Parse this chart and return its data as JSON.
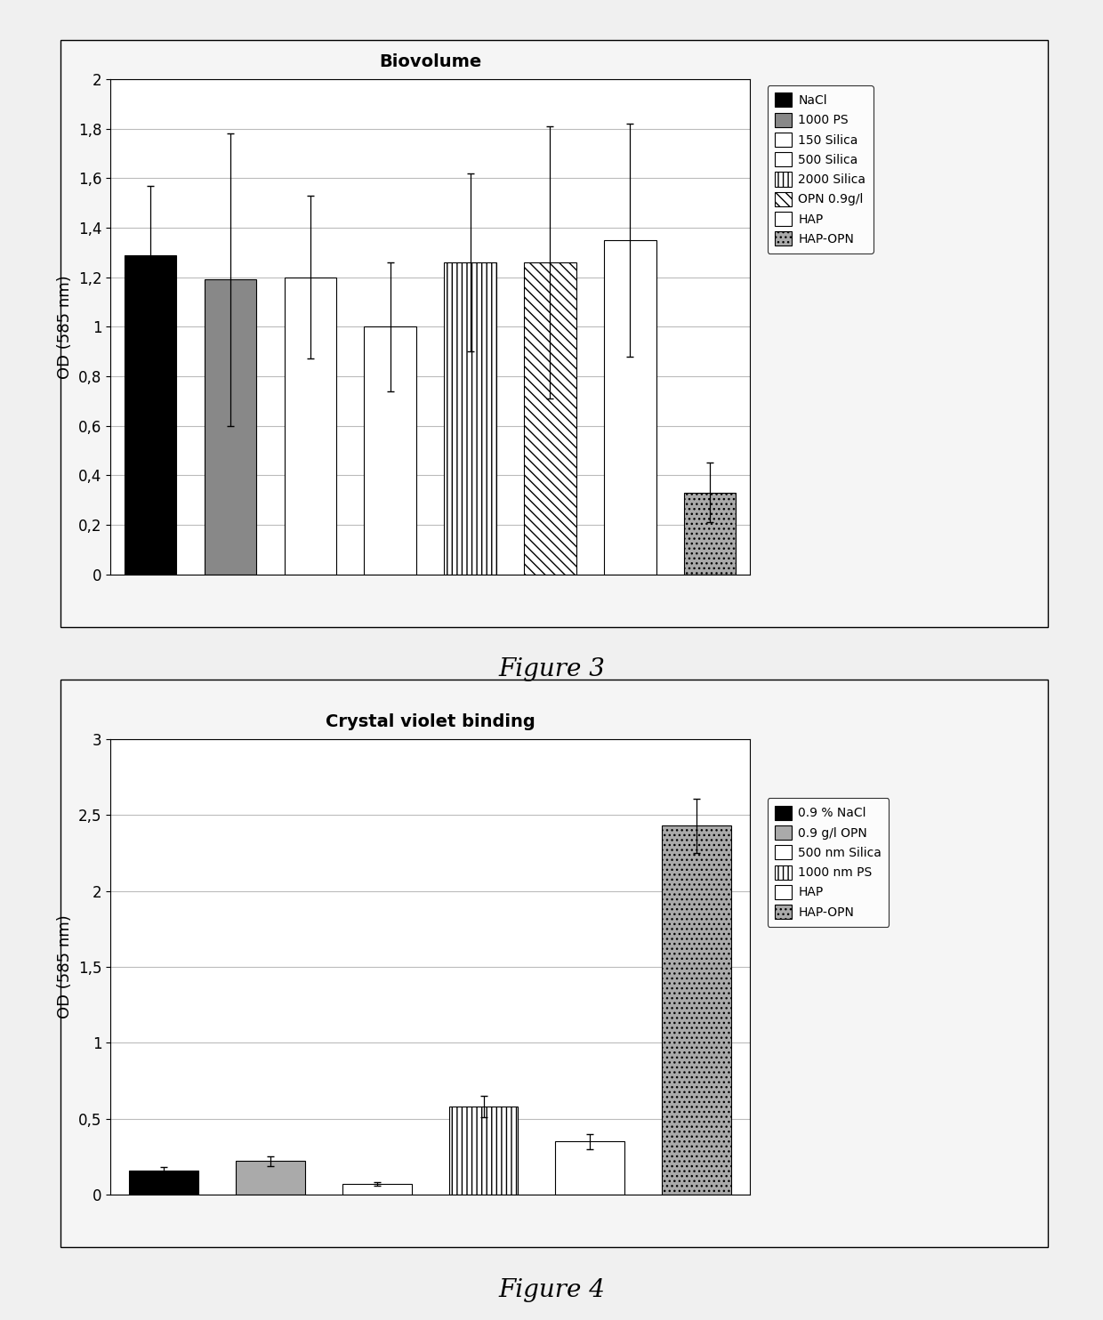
{
  "fig1": {
    "title": "Biovolume",
    "ylabel": "OD (585 nm)",
    "ylim": [
      0,
      2
    ],
    "yticks": [
      0,
      0.2,
      0.4,
      0.6,
      0.8,
      1.0,
      1.2,
      1.4,
      1.6,
      1.8,
      2.0
    ],
    "ytick_labels": [
      "0",
      "0,2",
      "0,4",
      "0,6",
      "0,8",
      "1",
      "1,2",
      "1,4",
      "1,6",
      "1,8",
      "2"
    ],
    "bars": [
      {
        "label": "NaCl",
        "value": 1.29,
        "err": 0.28,
        "color": "#000000",
        "hatch": ""
      },
      {
        "label": "1000 PS",
        "value": 1.19,
        "err": 0.59,
        "color": "#888888",
        "hatch": ""
      },
      {
        "label": "150 Silica",
        "value": 1.2,
        "err": 0.33,
        "color": "#ffffff",
        "hatch": ""
      },
      {
        "label": "500 Silica",
        "value": 1.0,
        "err": 0.26,
        "color": "#ffffff",
        "hatch": ""
      },
      {
        "label": "2000 Silica",
        "value": 1.26,
        "err": 0.36,
        "color": "#ffffff",
        "hatch": "|||"
      },
      {
        "label": "OPN 0.9g/l",
        "value": 1.26,
        "err": 0.55,
        "color": "#ffffff",
        "hatch": "\\\\\\"
      },
      {
        "label": "HAP",
        "value": 1.35,
        "err": 0.47,
        "color": "#ffffff",
        "hatch": "==="
      },
      {
        "label": "HAP-OPN",
        "value": 0.33,
        "err": 0.12,
        "color": "#aaaaaa",
        "hatch": "..."
      }
    ],
    "figure_label": "Figure 3"
  },
  "fig2": {
    "title": "Crystal violet binding",
    "ylabel": "OD (585 nm)",
    "ylim": [
      0,
      3
    ],
    "yticks": [
      0,
      0.5,
      1.0,
      1.5,
      2.0,
      2.5,
      3.0
    ],
    "ytick_labels": [
      "0",
      "0,5",
      "1",
      "1,5",
      "2",
      "2,5",
      "3"
    ],
    "bars": [
      {
        "label": "0.9 % NaCl",
        "value": 0.16,
        "err": 0.02,
        "color": "#000000",
        "hatch": ""
      },
      {
        "label": "0.9 g/l OPN",
        "value": 0.22,
        "err": 0.03,
        "color": "#aaaaaa",
        "hatch": ""
      },
      {
        "label": "500 nm Silica",
        "value": 0.07,
        "err": 0.01,
        "color": "#ffffff",
        "hatch": ""
      },
      {
        "label": "1000 nm PS",
        "value": 0.58,
        "err": 0.07,
        "color": "#ffffff",
        "hatch": "|||"
      },
      {
        "label": "HAP",
        "value": 0.35,
        "err": 0.05,
        "color": "#ffffff",
        "hatch": "==="
      },
      {
        "label": "HAP-OPN",
        "value": 2.43,
        "err": 0.18,
        "color": "#aaaaaa",
        "hatch": "..."
      }
    ],
    "figure_label": "Figure 4"
  },
  "background_color": "#f0f0f0",
  "plot_bg_color": "#ffffff",
  "panel_bg_color": "#f5f5f5",
  "grid_color": "#bbbbbb"
}
